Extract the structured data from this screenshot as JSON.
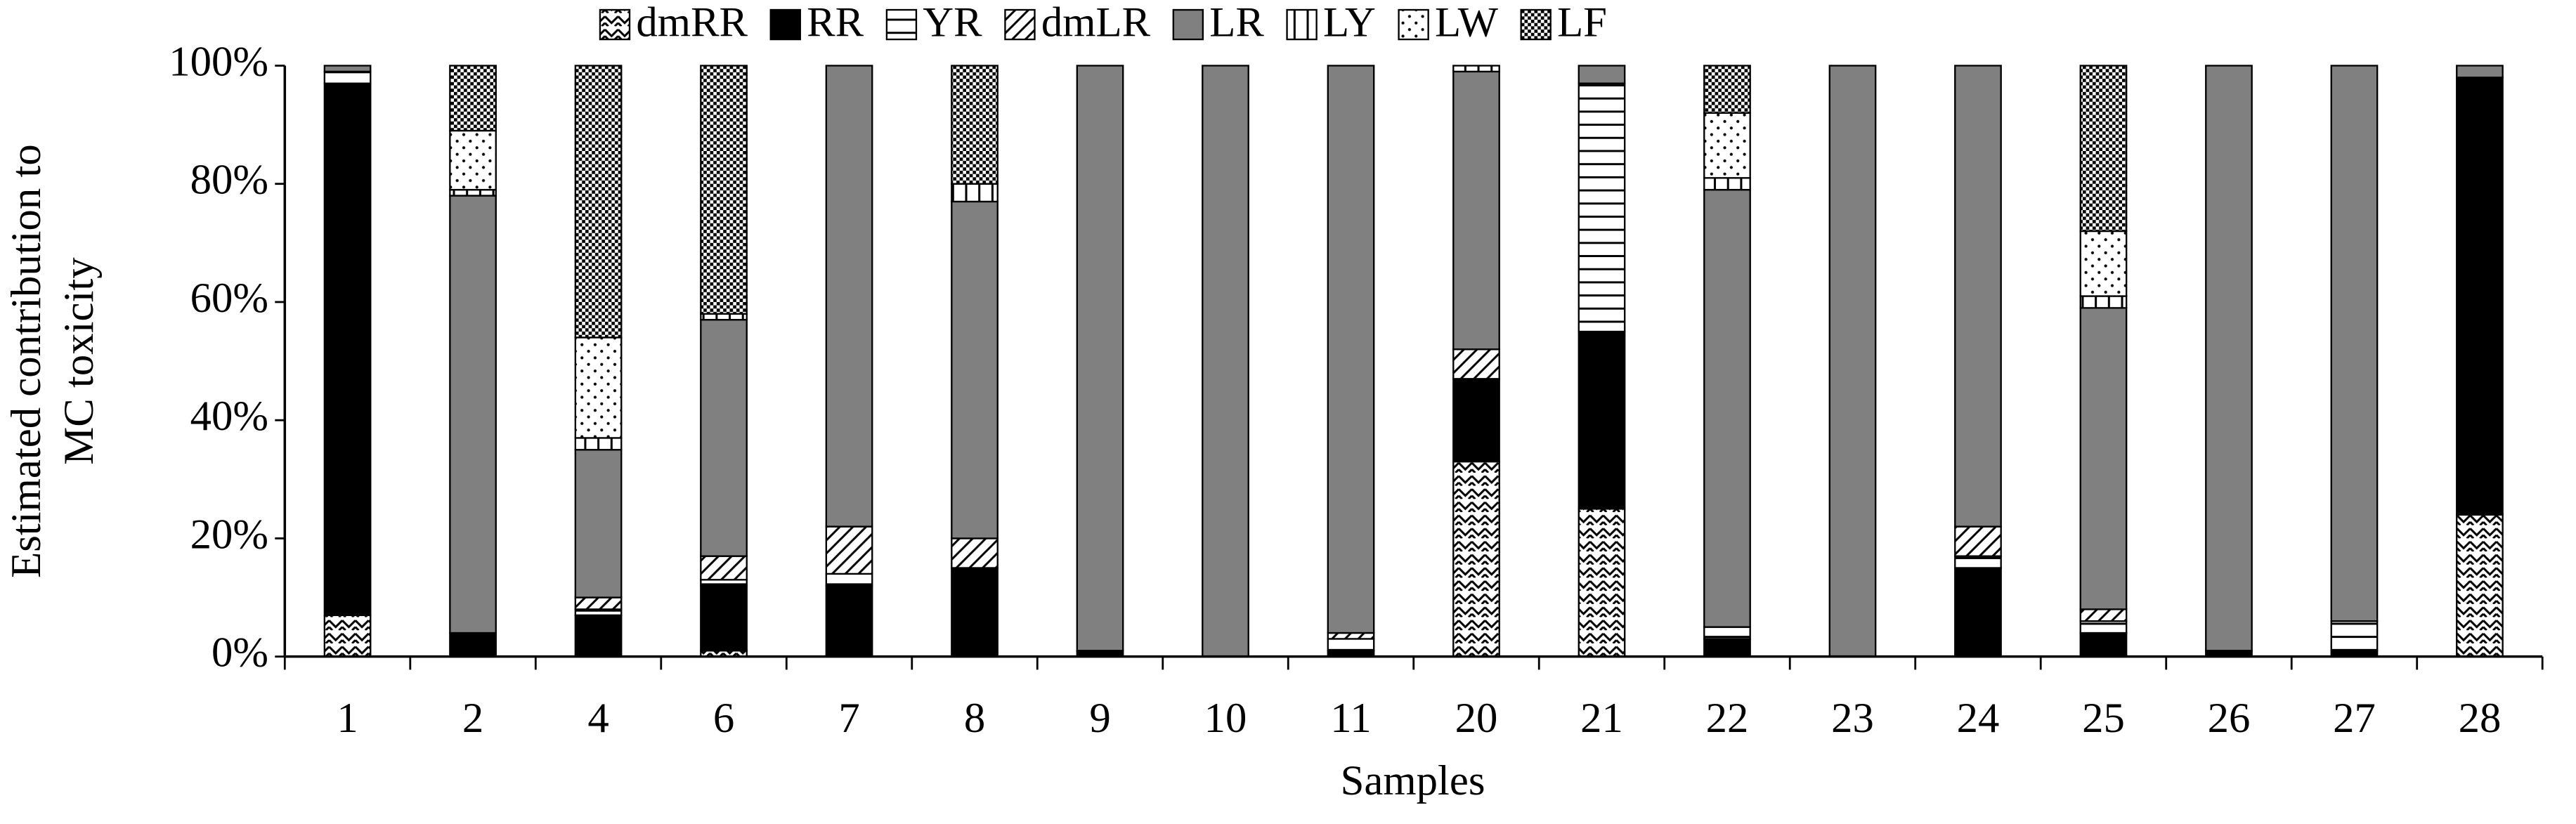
{
  "chart_data": {
    "type": "bar",
    "stacked": true,
    "ylabel": [
      "Estimated contribution to",
      "MC toxicity"
    ],
    "xlabel": "Samples",
    "categories": [
      "1",
      "2",
      "4",
      "6",
      "7",
      "8",
      "9",
      "10",
      "11",
      "20",
      "21",
      "22",
      "23",
      "24",
      "25",
      "26",
      "27",
      "28"
    ],
    "series": [
      {
        "name": "dmRR",
        "color": "#000000",
        "pattern": "zigzag",
        "values": [
          7,
          0,
          0,
          1,
          0,
          0,
          0,
          0,
          0,
          33,
          25,
          0,
          0,
          0,
          0,
          0,
          0,
          24
        ]
      },
      {
        "name": "RR",
        "color": "#000000",
        "pattern": "solid",
        "values": [
          90,
          4,
          7,
          11,
          12,
          15,
          1,
          0,
          1,
          14,
          30,
          3,
          0,
          15,
          4,
          1,
          1,
          74
        ]
      },
      {
        "name": "YR",
        "color": "#000000",
        "pattern": "hlines",
        "values": [
          2,
          0,
          1,
          1,
          2,
          0,
          0,
          0,
          2,
          0,
          42,
          2,
          0,
          2,
          2,
          0,
          5,
          0
        ]
      },
      {
        "name": "dmLR",
        "color": "#000000",
        "pattern": "diagonal",
        "values": [
          0,
          0,
          2,
          4,
          8,
          5,
          0,
          0,
          1,
          5,
          0,
          0,
          0,
          5,
          2,
          0,
          0,
          0
        ]
      },
      {
        "name": "LR",
        "color": "#808080",
        "pattern": "solid",
        "values": [
          1,
          74,
          25,
          40,
          78,
          57,
          99,
          100,
          96,
          47,
          3,
          74,
          100,
          78,
          51,
          99,
          94,
          2
        ]
      },
      {
        "name": "LY",
        "color": "#000000",
        "pattern": "vlines",
        "values": [
          0,
          1,
          2,
          1,
          0,
          3,
          0,
          0,
          0,
          1,
          0,
          2,
          0,
          0,
          2,
          0,
          0,
          0
        ]
      },
      {
        "name": "LW",
        "color": "#000000",
        "pattern": "dots",
        "values": [
          0,
          10,
          17,
          0,
          0,
          0,
          0,
          0,
          0,
          0,
          0,
          11,
          0,
          0,
          11,
          0,
          0,
          0
        ]
      },
      {
        "name": "LF",
        "color": "#000000",
        "pattern": "dense",
        "values": [
          0,
          11,
          46,
          42,
          0,
          20,
          0,
          0,
          0,
          0,
          0,
          8,
          0,
          0,
          28,
          0,
          0,
          0
        ]
      }
    ],
    "ylim": [
      0,
      100
    ],
    "yticks": [
      {
        "value": 0,
        "label": "0%"
      },
      {
        "value": 20,
        "label": "20%"
      },
      {
        "value": 40,
        "label": "40%"
      },
      {
        "value": 60,
        "label": "60%"
      },
      {
        "value": 80,
        "label": "80%"
      },
      {
        "value": 100,
        "label": "100%"
      }
    ],
    "grid": false,
    "legend": "top"
  }
}
